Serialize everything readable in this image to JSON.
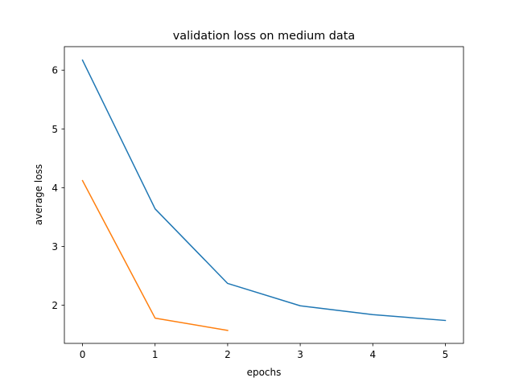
{
  "chart_data": {
    "type": "line",
    "title": "validation loss on medium data",
    "xlabel": "epochs",
    "ylabel": "average loss",
    "xlim": [
      -0.25,
      5.25
    ],
    "ylim": [
      1.35,
      6.4
    ],
    "xticks": [
      0,
      1,
      2,
      3,
      4,
      5
    ],
    "yticks": [
      2,
      3,
      4,
      5,
      6
    ],
    "grid": false,
    "legend": "none",
    "series": [
      {
        "color": "#1f77b4",
        "x": [
          0,
          1,
          2,
          3,
          4,
          5
        ],
        "values": [
          6.17,
          3.64,
          2.37,
          1.99,
          1.84,
          1.74
        ]
      },
      {
        "color": "#ff7f0e",
        "x": [
          0,
          1,
          2
        ],
        "values": [
          4.12,
          1.78,
          1.57
        ]
      }
    ]
  }
}
